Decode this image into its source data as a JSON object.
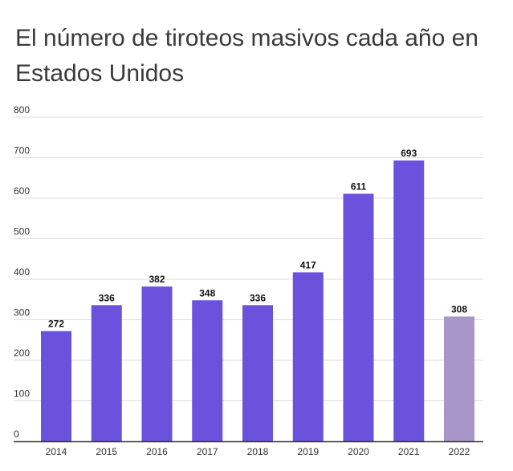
{
  "chart_data": {
    "type": "bar",
    "title": "El número de tiroteos masivos cada año en Estados Unidos",
    "categories": [
      "2014",
      "2015",
      "2016",
      "2017",
      "2018",
      "2019",
      "2020",
      "2021",
      "2022"
    ],
    "values": [
      272,
      336,
      382,
      348,
      336,
      417,
      611,
      693,
      308
    ],
    "value_labels": [
      "272",
      "336",
      "382",
      "348",
      "336",
      "417",
      "611",
      "693",
      "308"
    ],
    "ylim": [
      0,
      800
    ],
    "yticks": [
      0,
      100,
      200,
      300,
      400,
      500,
      600,
      700,
      800
    ],
    "ytick_labels": [
      "0",
      "100",
      "200",
      "300",
      "400",
      "500",
      "600",
      "700",
      "800"
    ],
    "xlabel": "",
    "ylabel": "",
    "grid": true,
    "colors": {
      "bar": "#6a52dd",
      "highlight_bar": "#a996c9",
      "grid": "#dddddd",
      "baseline": "#333333"
    },
    "highlight_index": 8
  }
}
